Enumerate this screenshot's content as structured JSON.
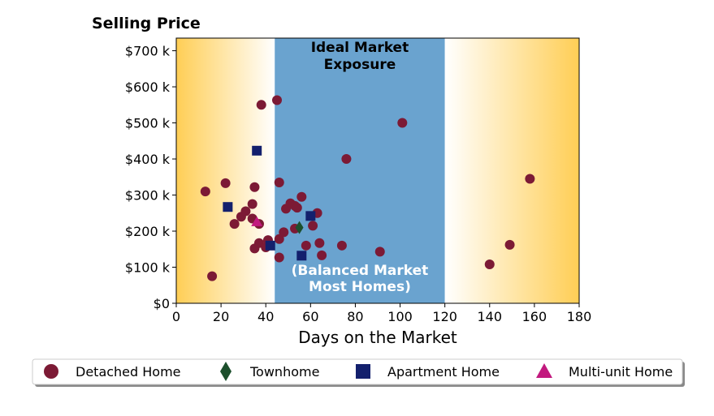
{
  "chart_data": {
    "type": "scatter",
    "title": "",
    "ylabel": "Selling Price",
    "xlabel": "Days on the Market",
    "xlim": [
      0,
      180
    ],
    "ylim": [
      0,
      735000
    ],
    "x_ticks": [
      0,
      20,
      40,
      60,
      80,
      100,
      120,
      140,
      160,
      180
    ],
    "x_tick_labels": [
      "0",
      "20",
      "40",
      "60",
      "80",
      "100",
      "120",
      "140",
      "160",
      "180"
    ],
    "y_ticks": [
      0,
      100000,
      200000,
      300000,
      400000,
      500000,
      600000,
      700000
    ],
    "y_tick_labels": [
      "$0",
      "$100 k",
      "$200 k",
      "$300 k",
      "$400 k",
      "$500 k",
      "$600 k",
      "$700 k"
    ],
    "grid": false,
    "legend_position": "bottom",
    "bands": [
      {
        "x_start": 44,
        "x_end": 120,
        "color": "#6aa3cf",
        "label_top": [
          "Ideal Market",
          "Exposure"
        ],
        "label_bottom": [
          "(Balanced Market",
          "Most Homes)"
        ]
      }
    ],
    "side_gradient_color": "#ffce55",
    "series": [
      {
        "name": "Detached Home",
        "marker": "circle",
        "color": "#7c1a35",
        "points": [
          [
            13,
            310000
          ],
          [
            16,
            75000
          ],
          [
            22,
            333000
          ],
          [
            26,
            220000
          ],
          [
            29,
            240000
          ],
          [
            31,
            255000
          ],
          [
            34,
            235000
          ],
          [
            34,
            275000
          ],
          [
            35,
            322000
          ],
          [
            35,
            152000
          ],
          [
            37,
            220000
          ],
          [
            37,
            167000
          ],
          [
            38,
            550000
          ],
          [
            40,
            155000
          ],
          [
            41,
            175000
          ],
          [
            45,
            563000
          ],
          [
            46,
            178000
          ],
          [
            46,
            335000
          ],
          [
            46,
            127000
          ],
          [
            48,
            197000
          ],
          [
            49,
            262000
          ],
          [
            51,
            277000
          ],
          [
            53,
            270000
          ],
          [
            53,
            207000
          ],
          [
            54,
            265000
          ],
          [
            56,
            295000
          ],
          [
            58,
            160000
          ],
          [
            61,
            215000
          ],
          [
            63,
            250000
          ],
          [
            64,
            167000
          ],
          [
            65,
            133000
          ],
          [
            74,
            160000
          ],
          [
            76,
            400000
          ],
          [
            91,
            143000
          ],
          [
            101,
            500000
          ],
          [
            140,
            108000
          ],
          [
            149,
            162000
          ],
          [
            158,
            345000
          ]
        ]
      },
      {
        "name": "Townhome",
        "marker": "diamond",
        "color": "#1c4f2c",
        "points": [
          [
            55,
            210000
          ]
        ]
      },
      {
        "name": "Apartment Home",
        "marker": "square",
        "color": "#13206d",
        "points": [
          [
            23,
            267000
          ],
          [
            36,
            423000
          ],
          [
            42,
            160000
          ],
          [
            56,
            132000
          ],
          [
            60,
            242000
          ]
        ]
      },
      {
        "name": "Multi-unit Home",
        "marker": "triangle",
        "color": "#c2197e",
        "points": [
          [
            36,
            225000
          ]
        ]
      }
    ]
  }
}
